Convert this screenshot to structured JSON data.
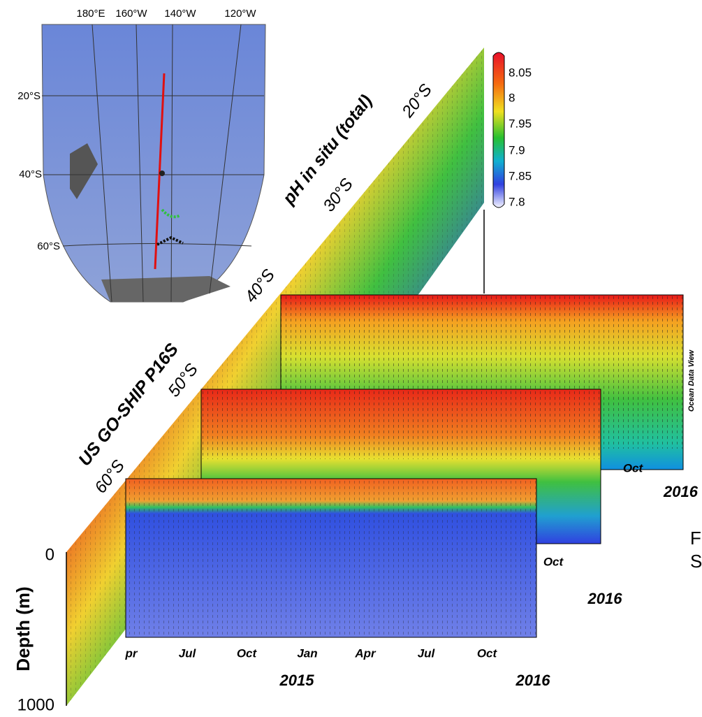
{
  "map": {
    "lon_labels": [
      "180°E",
      "160°W",
      "140°W",
      "120°W"
    ],
    "lat_labels": [
      "20°S",
      "40°S",
      "60°S"
    ]
  },
  "colorbar": {
    "labels": [
      "8.05",
      "8",
      "7.95",
      "7.9",
      "7.85",
      "7.8"
    ]
  },
  "section": {
    "title": "pH in situ (total)",
    "cruise": "US GO-SHIP P16S",
    "lat_labels": [
      "20°S",
      "30°S",
      "40°S",
      "50°S",
      "60°S"
    ]
  },
  "depth_axis": {
    "title": "Depth (m)",
    "ticks": [
      "0",
      "1000"
    ]
  },
  "back_panel": {
    "months": [
      "Oct"
    ],
    "year": "2016",
    "credit": "Ocean Data View"
  },
  "middle_panel": {
    "months": [
      "Oct"
    ],
    "year": "2016"
  },
  "front_panel": {
    "months": [
      "pr",
      "Jul",
      "Oct",
      "Jan",
      "Apr",
      "Jul",
      "Oct"
    ],
    "years": [
      "2015",
      "2016"
    ]
  },
  "cut_text": [
    "F",
    "S"
  ]
}
